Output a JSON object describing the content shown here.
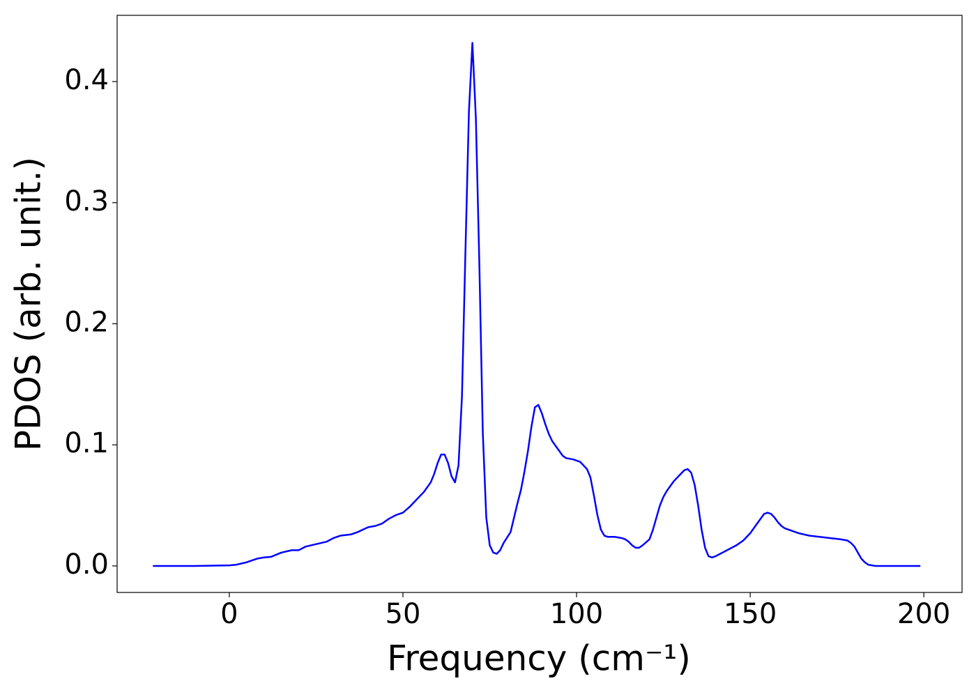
{
  "chart_data": {
    "type": "line",
    "xlabel": "Frequency (cm⁻¹)",
    "ylabel": "PDOS (arb. unit.)",
    "color": "#0000ff",
    "x": [
      -22,
      -10,
      0,
      2,
      5,
      8,
      10,
      12,
      15,
      18,
      20,
      22,
      25,
      28,
      30,
      32,
      35,
      37,
      40,
      42,
      44,
      46,
      48,
      50,
      52,
      54,
      56,
      58,
      59,
      60,
      61,
      62,
      63,
      64,
      65,
      66,
      67,
      68,
      69,
      70,
      71,
      72,
      73,
      74,
      75,
      76,
      77,
      78,
      79,
      81,
      82,
      83,
      84,
      85,
      86,
      87,
      88,
      89,
      90,
      91,
      92,
      93,
      94,
      95,
      96,
      97,
      99,
      101,
      102,
      103,
      104,
      105,
      106,
      107,
      108,
      109,
      111,
      113,
      114,
      115,
      116,
      117,
      118,
      119,
      121,
      122,
      123,
      124,
      125,
      126,
      127,
      128,
      129,
      130,
      131,
      132,
      133,
      134,
      135,
      136,
      137,
      138,
      139,
      140,
      142,
      144,
      146,
      148,
      150,
      152,
      154,
      155,
      156,
      157,
      158,
      159,
      160,
      162,
      164,
      167,
      170,
      173,
      176,
      178,
      179,
      180,
      181,
      182,
      183,
      184,
      186,
      190,
      199
    ],
    "values": [
      0,
      0,
      0.0005,
      0.001,
      0.003,
      0.006,
      0.007,
      0.0075,
      0.011,
      0.013,
      0.013,
      0.016,
      0.018,
      0.02,
      0.023,
      0.025,
      0.026,
      0.028,
      0.032,
      0.033,
      0.035,
      0.039,
      0.042,
      0.044,
      0.049,
      0.055,
      0.061,
      0.069,
      0.076,
      0.085,
      0.092,
      0.092,
      0.085,
      0.074,
      0.069,
      0.083,
      0.14,
      0.26,
      0.375,
      0.432,
      0.37,
      0.25,
      0.11,
      0.04,
      0.017,
      0.011,
      0.01,
      0.013,
      0.019,
      0.028,
      0.04,
      0.052,
      0.063,
      0.078,
      0.095,
      0.115,
      0.131,
      0.133,
      0.126,
      0.117,
      0.109,
      0.103,
      0.099,
      0.095,
      0.091,
      0.089,
      0.088,
      0.086,
      0.083,
      0.08,
      0.073,
      0.058,
      0.042,
      0.03,
      0.025,
      0.024,
      0.024,
      0.023,
      0.022,
      0.02,
      0.017,
      0.015,
      0.015,
      0.017,
      0.022,
      0.03,
      0.04,
      0.05,
      0.057,
      0.062,
      0.066,
      0.07,
      0.073,
      0.076,
      0.079,
      0.08,
      0.077,
      0.067,
      0.05,
      0.03,
      0.015,
      0.008,
      0.007,
      0.008,
      0.011,
      0.014,
      0.017,
      0.021,
      0.027,
      0.035,
      0.043,
      0.044,
      0.043,
      0.04,
      0.036,
      0.033,
      0.031,
      0.029,
      0.027,
      0.025,
      0.024,
      0.023,
      0.022,
      0.021,
      0.019,
      0.016,
      0.011,
      0.006,
      0.003,
      0.001,
      0,
      0,
      0
    ],
    "xlim": [
      -32.3,
      211.0
    ],
    "ylim": [
      -0.0219,
      0.4547
    ],
    "xticks": [
      0,
      50,
      100,
      150,
      200
    ],
    "yticks": [
      {
        "value": 0,
        "label": "0.0"
      },
      0.1,
      0.2,
      0.3,
      0.4
    ]
  }
}
